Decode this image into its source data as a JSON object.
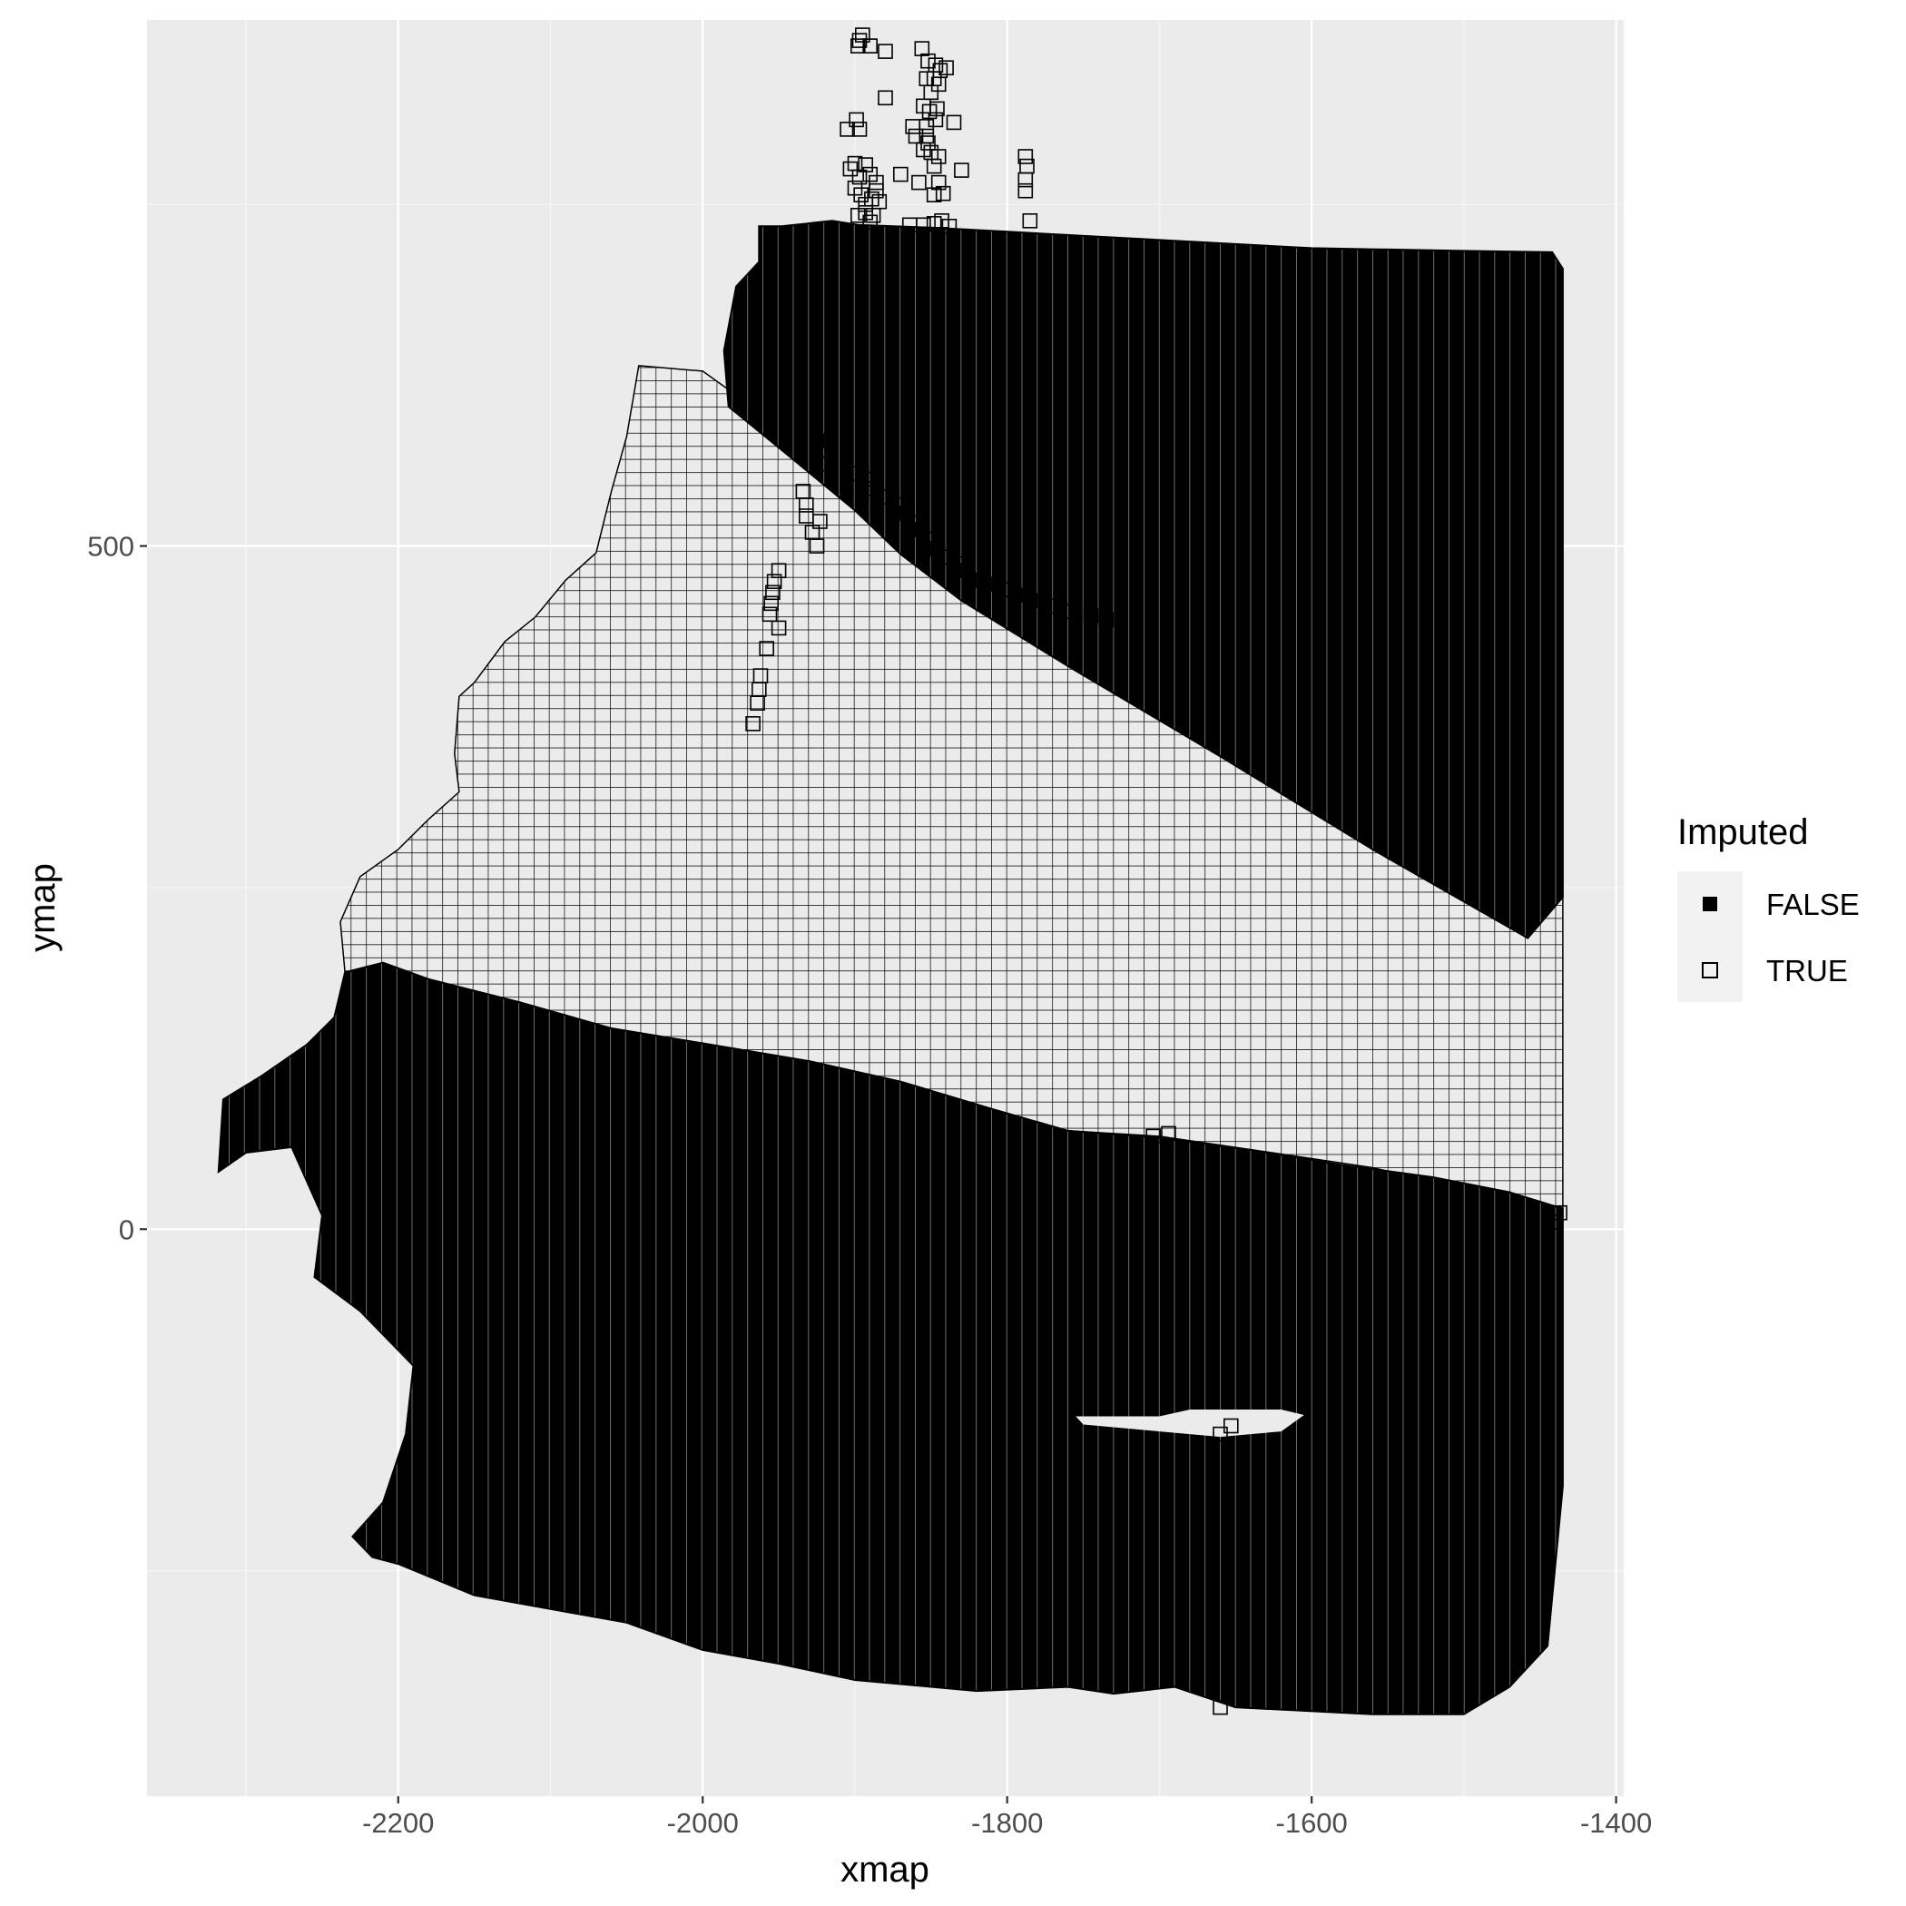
{
  "chart_data": {
    "type": "scatter",
    "title": "",
    "xlabel": "xmap",
    "ylabel": "ymap",
    "xlim": [
      -2365,
      -1395
    ],
    "ylim": [
      -415,
      885
    ],
    "x_ticks": [
      -2200,
      -2000,
      -1800,
      -1600,
      -1400
    ],
    "x_tick_labels": [
      "-2200",
      "-2000",
      "-1800",
      "-1600",
      "-1400"
    ],
    "y_ticks": [
      0,
      500
    ],
    "y_tick_labels": [
      "0",
      "500"
    ],
    "grid": true,
    "legend": {
      "title": "Imputed",
      "position": "right",
      "entries": [
        {
          "label": "FALSE",
          "marker": "filled-square",
          "color": "#000000"
        },
        {
          "label": "TRUE",
          "marker": "open-square",
          "color": "#000000"
        }
      ]
    },
    "colors": {
      "panel": "#ebebeb",
      "grid_major": "#ffffff",
      "grid_minor": "#f5f5f5",
      "false_fill": "#000000",
      "true_fill": "#ebebeb"
    },
    "series": [
      {
        "name": "FALSE",
        "marker": "filled-square",
        "regions": [
          {
            "name": "upper-block",
            "polygon": [
              [
                -1963,
                734
              ],
              [
                -1948,
                734
              ],
              [
                -1915,
                738
              ],
              [
                -1898,
                735
              ],
              [
                -1850,
                733
              ],
              [
                -1800,
                730
              ],
              [
                -1700,
                724
              ],
              [
                -1600,
                718
              ],
              [
                -1500,
                716
              ],
              [
                -1442,
                715
              ],
              [
                -1435,
                703
              ],
              [
                -1435,
                243
              ],
              [
                -1458,
                213
              ],
              [
                -1560,
                278
              ],
              [
                -1660,
                346
              ],
              [
                -1760,
                412
              ],
              [
                -1830,
                460
              ],
              [
                -1870,
                494
              ],
              [
                -1900,
                526
              ],
              [
                -1950,
                572
              ],
              [
                -1983,
                602
              ],
              [
                -1986,
                643
              ],
              [
                -1978,
                690
              ],
              [
                -1963,
                708
              ]
            ]
          },
          {
            "name": "lower-block",
            "polygon": [
              [
                -2235,
                188
              ],
              [
                -2210,
                195
              ],
              [
                -2180,
                183
              ],
              [
                -2120,
                166
              ],
              [
                -2060,
                147
              ],
              [
                -2000,
                136
              ],
              [
                -1930,
                123
              ],
              [
                -1870,
                108
              ],
              [
                -1810,
                88
              ],
              [
                -1760,
                72
              ],
              [
                -1700,
                67
              ],
              [
                -1640,
                58
              ],
              [
                -1580,
                47
              ],
              [
                -1520,
                38
              ],
              [
                -1470,
                27
              ],
              [
                -1435,
                15
              ],
              [
                -1435,
                -188
              ],
              [
                -1445,
                -305
              ],
              [
                -1470,
                -335
              ],
              [
                -1500,
                -355
              ],
              [
                -1560,
                -355
              ],
              [
                -1650,
                -350
              ],
              [
                -1690,
                -335
              ],
              [
                -1730,
                -340
              ],
              [
                -1760,
                -335
              ],
              [
                -1820,
                -338
              ],
              [
                -1900,
                -330
              ],
              [
                -1950,
                -318
              ],
              [
                -2000,
                -308
              ],
              [
                -2050,
                -288
              ],
              [
                -2100,
                -278
              ],
              [
                -2150,
                -268
              ],
              [
                -2200,
                -245
              ],
              [
                -2217,
                -240
              ],
              [
                -2230,
                -225
              ],
              [
                -2210,
                -200
              ],
              [
                -2195,
                -150
              ],
              [
                -2190,
                -100
              ],
              [
                -2225,
                -60
              ],
              [
                -2255,
                -35
              ],
              [
                -2250,
                10
              ],
              [
                -2270,
                60
              ],
              [
                -2300,
                56
              ],
              [
                -2318,
                42
              ],
              [
                -2315,
                95
              ],
              [
                -2290,
                112
              ],
              [
                -2260,
                135
              ],
              [
                -2242,
                155
              ]
            ]
          }
        ],
        "holes": [
          {
            "name": "center-hole",
            "polygon": [
              [
                -1680,
                -132
              ],
              [
                -1620,
                -132
              ],
              [
                -1605,
                -136
              ],
              [
                -1620,
                -148
              ],
              [
                -1660,
                -152
              ],
              [
                -1700,
                -148
              ],
              [
                -1750,
                -143
              ],
              [
                -1755,
                -137
              ],
              [
                -1700,
                -137
              ]
            ]
          }
        ]
      },
      {
        "name": "TRUE",
        "marker": "open-square",
        "regions": [
          {
            "name": "wedge",
            "polygon": [
              [
                -2042,
                632
              ],
              [
                -2000,
                628
              ],
              [
                -1980,
                612
              ],
              [
                -1950,
                582
              ],
              [
                -1900,
                536
              ],
              [
                -1860,
                500
              ],
              [
                -1820,
                476
              ],
              [
                -1760,
                446
              ],
              [
                -1700,
                410
              ],
              [
                -1640,
                372
              ],
              [
                -1580,
                335
              ],
              [
                -1500,
                287
              ],
              [
                -1435,
                245
              ],
              [
                -1435,
                15
              ],
              [
                -1500,
                30
              ],
              [
                -1560,
                45
              ],
              [
                -1620,
                55
              ],
              [
                -1700,
                68
              ],
              [
                -1760,
                72
              ],
              [
                -1810,
                88
              ],
              [
                -1870,
                108
              ],
              [
                -1930,
                123
              ],
              [
                -2000,
                136
              ],
              [
                -2060,
                147
              ],
              [
                -2120,
                166
              ],
              [
                -2180,
                183
              ],
              [
                -2235,
                188
              ],
              [
                -2238,
                225
              ],
              [
                -2225,
                258
              ],
              [
                -2200,
                278
              ],
              [
                -2180,
                300
              ],
              [
                -2160,
                320
              ],
              [
                -2163,
                348
              ],
              [
                -2160,
                390
              ],
              [
                -2150,
                400
              ],
              [
                -2130,
                430
              ],
              [
                -2110,
                448
              ],
              [
                -2090,
                475
              ],
              [
                -2070,
                495
              ],
              [
                -2060,
                540
              ],
              [
                -2050,
                580
              ]
            ]
          }
        ],
        "points": [
          [
            -1895,
            874
          ],
          [
            -1897,
            870
          ],
          [
            -1898,
            866
          ],
          [
            -1890,
            866
          ],
          [
            -1880,
            862
          ],
          [
            -1856,
            864
          ],
          [
            -1852,
            855
          ],
          [
            -1847,
            852
          ],
          [
            -1844,
            848
          ],
          [
            -1840,
            850
          ],
          [
            -1853,
            842
          ],
          [
            -1848,
            842
          ],
          [
            -1845,
            838
          ],
          [
            -1850,
            832
          ],
          [
            -1880,
            828
          ],
          [
            -1855,
            822
          ],
          [
            -1851,
            818
          ],
          [
            -1846,
            820
          ],
          [
            -1899,
            812
          ],
          [
            -1897,
            805
          ],
          [
            -1905,
            805
          ],
          [
            -1835,
            810
          ],
          [
            -1847,
            812
          ],
          [
            -1853,
            807
          ],
          [
            -1853,
            800
          ],
          [
            -1852,
            795
          ],
          [
            -1855,
            790
          ],
          [
            -1862,
            807
          ],
          [
            -1860,
            800
          ],
          [
            -1850,
            788
          ],
          [
            -1845,
            785
          ],
          [
            -1848,
            778
          ],
          [
            -1788,
            785
          ],
          [
            -1787,
            778
          ],
          [
            -1900,
            780
          ],
          [
            -1903,
            776
          ],
          [
            -1893,
            779
          ],
          [
            -1890,
            772
          ],
          [
            -1897,
            770
          ],
          [
            -1886,
            766
          ],
          [
            -1900,
            762
          ],
          [
            -1886,
            760
          ],
          [
            -1896,
            757
          ],
          [
            -1889,
            754
          ],
          [
            -1884,
            752
          ],
          [
            -1893,
            750
          ],
          [
            -1893,
            744
          ],
          [
            -1898,
            742
          ],
          [
            -1888,
            742
          ],
          [
            -1890,
            737
          ],
          [
            -1870,
            772
          ],
          [
            -1858,
            766
          ],
          [
            -1788,
            768
          ],
          [
            -1788,
            760
          ],
          [
            -1830,
            775
          ],
          [
            -1845,
            766
          ],
          [
            -1848,
            757
          ],
          [
            -1842,
            758
          ],
          [
            -1785,
            738
          ],
          [
            -1855,
            735
          ],
          [
            -1848,
            736
          ],
          [
            -1843,
            738
          ],
          [
            -1838,
            734
          ],
          [
            -1864,
            735
          ],
          [
            -1925,
            500
          ],
          [
            -1928,
            510
          ],
          [
            -1923,
            518
          ],
          [
            -1934,
            540
          ],
          [
            -1932,
            530
          ],
          [
            -1932,
            522
          ],
          [
            -1922,
            560
          ],
          [
            -1920,
            570
          ],
          [
            -1925,
            577
          ],
          [
            -1897,
            553
          ],
          [
            -1893,
            549
          ],
          [
            -1888,
            542
          ],
          [
            -1882,
            536
          ],
          [
            -1872,
            530
          ],
          [
            -1866,
            524
          ],
          [
            -1862,
            517
          ],
          [
            -1856,
            512
          ],
          [
            -1852,
            505
          ],
          [
            -1846,
            498
          ],
          [
            -1840,
            492
          ],
          [
            -1833,
            487
          ],
          [
            -1826,
            482
          ],
          [
            -1816,
            475
          ],
          [
            -1806,
            472
          ],
          [
            -1798,
            468
          ],
          [
            -1786,
            464
          ],
          [
            -1776,
            460
          ],
          [
            -1768,
            456
          ],
          [
            -1758,
            452
          ],
          [
            -1745,
            449
          ],
          [
            -1735,
            446
          ],
          [
            -1950,
            482
          ],
          [
            -1953,
            474
          ],
          [
            -1954,
            466
          ],
          [
            -1955,
            458
          ],
          [
            -1956,
            450
          ],
          [
            -1950,
            440
          ],
          [
            -1958,
            425
          ],
          [
            -1962,
            405
          ],
          [
            -1963,
            395
          ],
          [
            -1964,
            385
          ],
          [
            -1967,
            370
          ],
          [
            -1694,
            70
          ],
          [
            -1704,
            68
          ],
          [
            -1660,
            -150
          ],
          [
            -1653,
            -144
          ],
          [
            -1660,
            -350
          ],
          [
            -1440,
            5
          ],
          [
            -1437,
            12
          ]
        ]
      }
    ]
  }
}
